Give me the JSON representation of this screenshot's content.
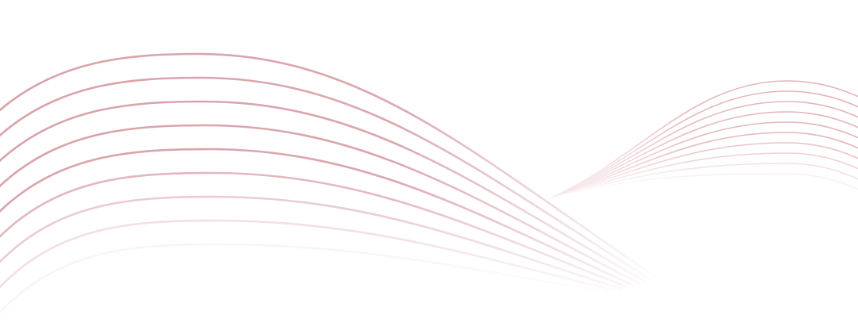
{
  "decoration": {
    "left_wave_count": 9,
    "right_wave_count": 10,
    "colors": {
      "left_line": "#d9a2a9",
      "right_line": "#e2b2b8",
      "background": "#ffffff"
    }
  }
}
